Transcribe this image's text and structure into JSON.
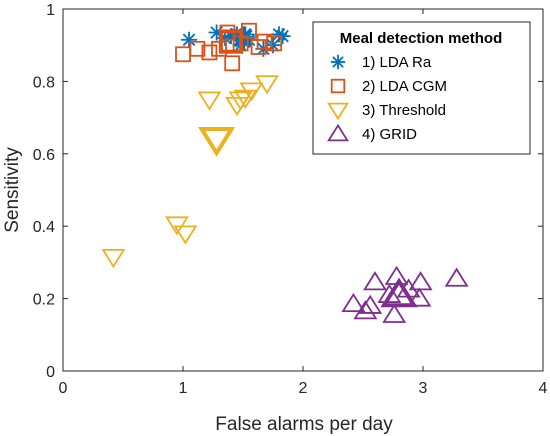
{
  "chart_data": {
    "type": "scatter",
    "xlabel": "False alarms per day",
    "ylabel": "Sensitivity",
    "xlim": [
      0,
      4
    ],
    "ylim": [
      0,
      1
    ],
    "xticks": [
      "0",
      "1",
      "2",
      "3",
      "4"
    ],
    "yticks": [
      "0",
      "0.2",
      "0.4",
      "0.6",
      "0.8",
      "1"
    ],
    "grid": false,
    "legend": {
      "title": "Meal detection method",
      "placement": "top-right"
    },
    "series": [
      {
        "name": "1) LDA Ra",
        "marker": "asterisk",
        "color": "#0072BD",
        "points": [
          [
            1.05,
            0.915
          ],
          [
            1.28,
            0.935
          ],
          [
            1.35,
            0.92
          ],
          [
            1.4,
            0.925
          ],
          [
            1.45,
            0.93
          ],
          [
            1.48,
            0.9
          ],
          [
            1.52,
            0.93
          ],
          [
            1.55,
            0.915
          ],
          [
            1.67,
            0.89
          ],
          [
            1.75,
            0.9
          ],
          [
            1.8,
            0.93
          ],
          [
            1.83,
            0.925
          ]
        ],
        "mean": [
          1.5,
          0.92
        ]
      },
      {
        "name": "2) LDA CGM",
        "marker": "square",
        "color": "#D95319",
        "points": [
          [
            1.0,
            0.875
          ],
          [
            1.12,
            0.89
          ],
          [
            1.22,
            0.88
          ],
          [
            1.3,
            0.89
          ],
          [
            1.37,
            0.935
          ],
          [
            1.41,
            0.85
          ],
          [
            1.48,
            0.905
          ],
          [
            1.55,
            0.94
          ],
          [
            1.63,
            0.895
          ],
          [
            1.68,
            0.91
          ],
          [
            1.76,
            0.905
          ]
        ],
        "mean": [
          1.4,
          0.91
        ]
      },
      {
        "name": "3) Threshold",
        "marker": "triangle-down",
        "color": "#EDB120",
        "points": [
          [
            0.42,
            0.315
          ],
          [
            0.95,
            0.405
          ],
          [
            1.02,
            0.38
          ],
          [
            1.22,
            0.75
          ],
          [
            1.45,
            0.735
          ],
          [
            1.48,
            0.75
          ],
          [
            1.52,
            0.755
          ],
          [
            1.57,
            0.775
          ],
          [
            1.7,
            0.795
          ]
        ],
        "mean": [
          1.28,
          0.64
        ]
      },
      {
        "name": "4) GRID",
        "marker": "triangle-up",
        "color": "#7E2F8E",
        "points": [
          [
            2.42,
            0.185
          ],
          [
            2.52,
            0.165
          ],
          [
            2.56,
            0.18
          ],
          [
            2.6,
            0.245
          ],
          [
            2.72,
            0.21
          ],
          [
            2.76,
            0.155
          ],
          [
            2.78,
            0.26
          ],
          [
            2.88,
            0.225
          ],
          [
            2.97,
            0.2
          ],
          [
            2.98,
            0.245
          ],
          [
            3.28,
            0.255
          ]
        ],
        "mean": [
          2.8,
          0.21
        ]
      }
    ]
  }
}
